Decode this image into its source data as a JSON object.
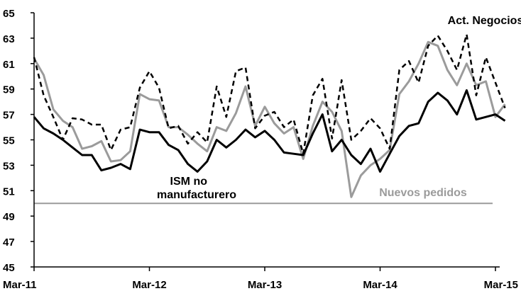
{
  "chart_data": {
    "type": "line",
    "title": "",
    "xlabel": "",
    "ylabel": "",
    "ylim": [
      45,
      65
    ],
    "yticks": [
      45,
      47,
      49,
      51,
      53,
      55,
      57,
      59,
      61,
      63,
      65
    ],
    "x_ticks": [
      {
        "index": 0,
        "label": "Mar-11"
      },
      {
        "index": 12,
        "label": "Mar-12"
      },
      {
        "index": 24,
        "label": "Mar-13"
      },
      {
        "index": 36,
        "label": "Mar-14"
      },
      {
        "index": 48,
        "label": "Mar-15"
      }
    ],
    "x_months": 49,
    "threshold": 50,
    "grid": false,
    "colors": {
      "ism": "#000000",
      "negocios": "#000000",
      "pedidos": "#9b9b9b",
      "threshold": "#9b9b9b",
      "axis": "#000000"
    },
    "series": [
      {
        "key": "ism",
        "name": "ISM no manufacturero",
        "style": "solid",
        "values": [
          56.8,
          55.9,
          55.5,
          55.0,
          54.4,
          53.8,
          53.8,
          52.6,
          52.8,
          53.1,
          52.7,
          55.8,
          55.6,
          55.6,
          54.6,
          54.2,
          53.1,
          52.5,
          53.3,
          55.0,
          54.4,
          55.0,
          55.8,
          55.2,
          55.7,
          55.0,
          54.0,
          53.9,
          53.8,
          55.5,
          57.0,
          54.1,
          55.0,
          53.8,
          53.1,
          54.3,
          52.5,
          53.9,
          55.3,
          56.1,
          56.3,
          58.0,
          58.7,
          58.1,
          57.0,
          58.9,
          56.6,
          56.8,
          57.0,
          56.5
        ]
      },
      {
        "key": "negocios",
        "name": "Act. Negocios",
        "style": "dashed",
        "values": [
          61.5,
          58.5,
          56.8,
          55.0,
          56.7,
          56.6,
          56.2,
          56.2,
          54.2,
          55.8,
          56.0,
          59.1,
          60.4,
          59.1,
          55.9,
          56.1,
          54.7,
          55.6,
          54.8,
          59.2,
          56.8,
          60.4,
          60.7,
          55.9,
          56.9,
          57.2,
          56.0,
          56.6,
          53.9,
          58.5,
          59.8,
          55.1,
          59.7,
          55.0,
          55.7,
          56.7,
          55.9,
          54.3,
          60.5,
          61.2,
          59.5,
          62.4,
          63.2,
          62.0,
          60.5,
          63.3,
          58.5,
          61.5,
          59.5,
          57.5
        ]
      },
      {
        "key": "pedidos",
        "name": "Nuevos pedidos",
        "style": "solid",
        "values": [
          61.4,
          60.1,
          57.4,
          56.5,
          56.0,
          54.3,
          54.5,
          54.9,
          53.3,
          53.4,
          54.1,
          58.6,
          58.2,
          58.1,
          56.0,
          56.0,
          55.4,
          54.7,
          54.1,
          56.0,
          55.7,
          57.1,
          59.2,
          56.1,
          57.6,
          56.3,
          55.5,
          56.0,
          53.5,
          56.1,
          58.0,
          57.2,
          55.7,
          50.5,
          52.2,
          53.0,
          53.5,
          54.2,
          58.6,
          59.6,
          61.0,
          62.7,
          62.4,
          60.5,
          59.3,
          61.0,
          59.3,
          59.6,
          56.8,
          57.8
        ]
      }
    ],
    "annotations": [
      {
        "key": "negocios",
        "line1": "Act. Negocios",
        "line2": ""
      },
      {
        "key": "ism",
        "line1": "ISM no",
        "line2": "manufacturero"
      },
      {
        "key": "pedidos",
        "line1": "Nuevos pedidos",
        "line2": ""
      }
    ]
  }
}
